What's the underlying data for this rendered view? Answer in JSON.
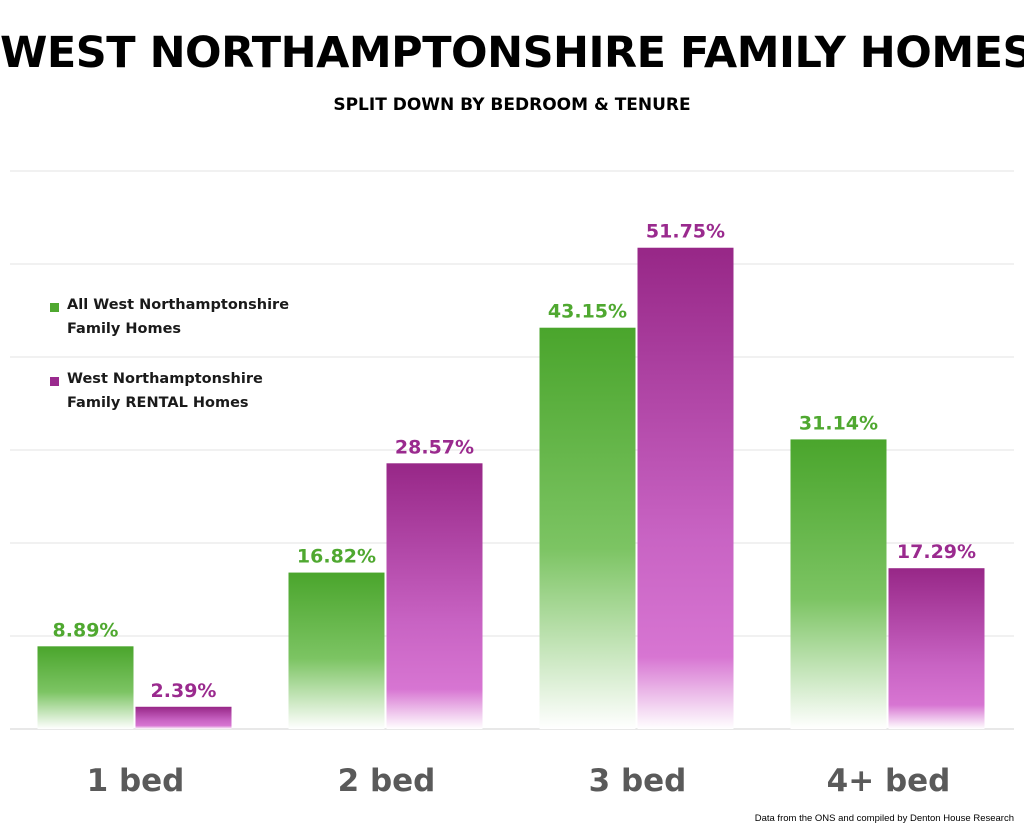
{
  "title": "WEST NORTHAMPTONSHIRE FAMILY HOMES",
  "subtitle": "SPLIT DOWN BY BEDROOM & TENURE",
  "footer": "Data from the ONS and compiled by Denton House Research",
  "chart_data": {
    "type": "bar",
    "title": "WEST NORTHAMPTONSHIRE FAMILY HOMES",
    "subtitle": "SPLIT DOWN BY BEDROOM & TENURE",
    "categories": [
      "1 bed",
      "2 bed",
      "3 bed",
      "4+ bed"
    ],
    "series": [
      {
        "name": "All West Northamptonshire Family Homes",
        "values": [
          8.89,
          16.82,
          43.15,
          31.14
        ],
        "labels": [
          "8.89%",
          "16.82%",
          "43.15%",
          "31.14%"
        ],
        "color": "#4fa830"
      },
      {
        "name": "West Northamptonshire Family RENTAL Homes",
        "values": [
          2.39,
          28.57,
          51.75,
          17.29
        ],
        "labels": [
          "2.39%",
          "28.57%",
          "51.75%",
          "17.29%"
        ],
        "color": "#9a2a8e"
      }
    ],
    "ylim": [
      0,
      60
    ],
    "grid": true,
    "legend_position": "top-left",
    "xlabel": "",
    "ylabel": ""
  }
}
